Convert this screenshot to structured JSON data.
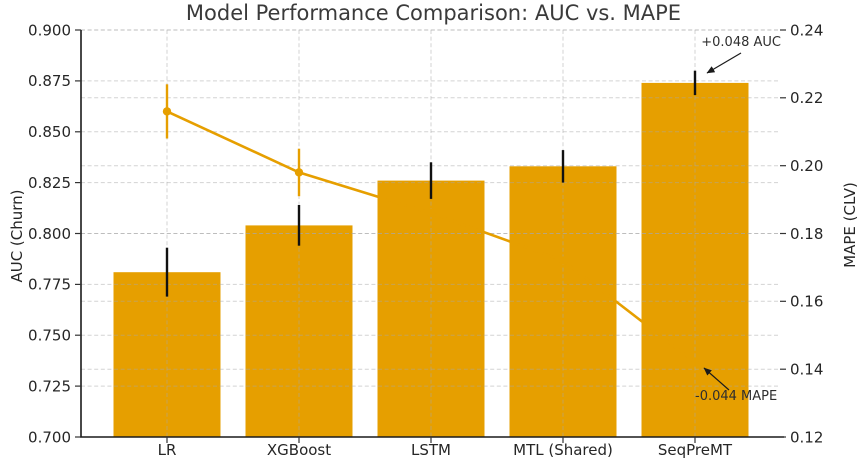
{
  "title": "Model Performance Comparison: AUC vs. MAPE",
  "left_axis": {
    "label": "AUC (Churn)",
    "min": 0.7,
    "max": 0.9,
    "tick_labels": [
      "0.900",
      "0.875",
      "0.850",
      "0.825",
      "0.800",
      "0.775",
      "0.750",
      "0.725",
      "0.700"
    ]
  },
  "right_axis": {
    "label": "MAPE (CLV)",
    "min": 0.12,
    "max": 0.24,
    "tick_labels": [
      "0.24",
      "0.22",
      "0.20",
      "0.18",
      "0.16",
      "0.14",
      "0.12"
    ]
  },
  "chart_data": {
    "type": "bar",
    "subtype": "dual-axis bars with error bars plus line series",
    "title": "Model Performance Comparison: AUC vs. MAPE",
    "categories": [
      "LR",
      "XGBoost",
      "LSTM",
      "MTL (Shared)",
      "SeqPreMT"
    ],
    "series": [
      {
        "name": "AUC (Churn)",
        "type": "bar",
        "axis": "left",
        "color": "#E69F00",
        "values": [
          0.781,
          0.804,
          0.826,
          0.833,
          0.874
        ],
        "errors": [
          0.012,
          0.01,
          0.009,
          0.008,
          0.006
        ]
      },
      {
        "name": "MAPE (CLV)",
        "type": "line",
        "axis": "right",
        "color": "#E69F00",
        "values": [
          0.216,
          0.198,
          0.186,
          0.172,
          0.142
        ],
        "errors": [
          0.008,
          0.007,
          null,
          null,
          null
        ]
      }
    ],
    "xlabel": "",
    "ylabel_left": "AUC (Churn)",
    "ylabel_right": "MAPE (CLV)",
    "ylim_left": [
      0.7,
      0.9
    ],
    "ylim_right": [
      0.12,
      0.24
    ],
    "grid": true,
    "legend": false
  },
  "annotations": {
    "auc": {
      "text": "+0.048 AUC",
      "refers_to": "SeqPreMT AUC bar top"
    },
    "mape": {
      "text": "-0.044 MAPE",
      "refers_to": "SeqPreMT MAPE line point"
    }
  },
  "colors": {
    "bar": "#E69F00",
    "line": "#E69F00",
    "error_bar": "#111111",
    "grid": "#a8a8a8",
    "spine": "#1a1a1a",
    "text": "#262626",
    "arrow": "#1a1a1a"
  }
}
